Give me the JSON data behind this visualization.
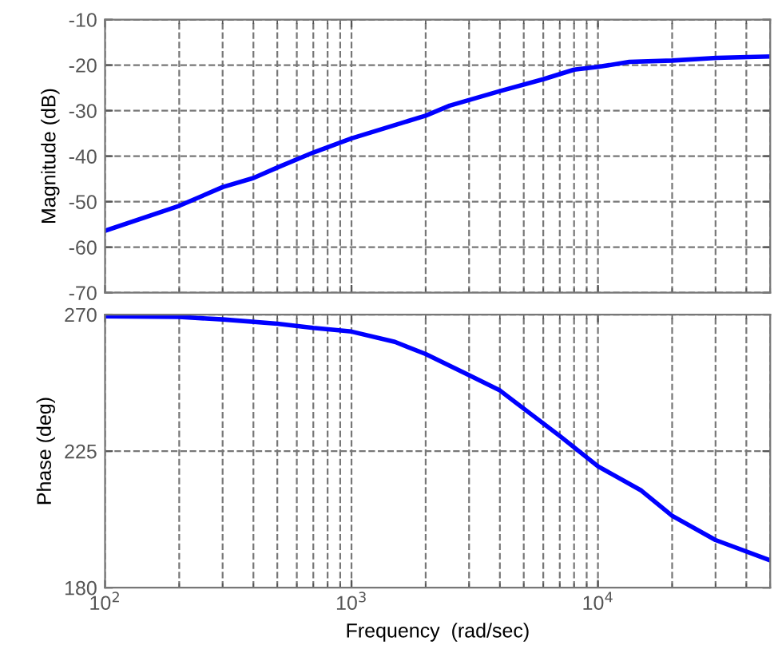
{
  "chart_data": [
    {
      "type": "line",
      "ylabel": "Magnitude (dB)",
      "log": "x",
      "xlim": [
        100,
        50000
      ],
      "xticks": [
        {
          "value": 100,
          "label": null
        },
        {
          "value": 1000,
          "label": null
        },
        {
          "value": 10000,
          "label": null
        }
      ],
      "ylim": [
        -70,
        -10
      ],
      "yticks": [
        -70,
        -60,
        -50,
        -40,
        -30,
        -20,
        -10
      ],
      "grid": true,
      "tick_labels": "y",
      "x": [
        100,
        200,
        300,
        400,
        500,
        700,
        1000,
        2000,
        2500,
        4000,
        6000,
        8000,
        10000,
        13400,
        20000,
        30300,
        50000
      ],
      "series": [
        {
          "color": "#0000ff",
          "values": [
            -56.4,
            -50.9,
            -46.8,
            -44.8,
            -42.5,
            -39.2,
            -36.1,
            -31.1,
            -28.9,
            -25.7,
            -23.1,
            -21.0,
            -20.4,
            -19.3,
            -19.0,
            -18.4,
            -18.1
          ]
        }
      ]
    },
    {
      "type": "line",
      "xlabel": "Frequency  (rad/sec)",
      "ylabel": "Phase (deg)",
      "log": "x",
      "xlim": [
        100,
        50000
      ],
      "xticks": [
        {
          "value": 100,
          "label": "10$^{2}$"
        },
        {
          "value": 1000,
          "label": "10$^{3}$"
        },
        {
          "value": 10000,
          "label": "10$^{4}$"
        }
      ],
      "ylim": [
        180,
        270
      ],
      "yticks": [
        180,
        225,
        270
      ],
      "grid": true,
      "x": [
        100,
        200,
        300,
        500,
        700,
        1000,
        1500,
        2000,
        3000,
        4000,
        5000,
        7000,
        10000,
        15000,
        20000,
        30000,
        50000
      ],
      "series": [
        {
          "color": "#0000ff",
          "values": [
            269.4,
            269.2,
            268.4,
            267,
            265.6,
            264.4,
            261,
            257,
            250,
            245,
            239,
            230,
            220,
            212,
            203.7,
            195.7,
            189
          ]
        }
      ]
    }
  ]
}
